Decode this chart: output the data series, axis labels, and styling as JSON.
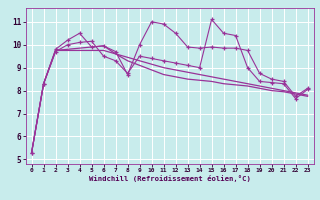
{
  "xlabel": "Windchill (Refroidissement éolien,°C)",
  "bg_color": "#c8ecec",
  "line_color": "#993399",
  "grid_color": "#ffffff",
  "xlim": [
    -0.5,
    23.5
  ],
  "ylim": [
    4.8,
    11.6
  ],
  "yticks": [
    5,
    6,
    7,
    8,
    9,
    10,
    11
  ],
  "xticks": [
    0,
    1,
    2,
    3,
    4,
    5,
    6,
    7,
    8,
    9,
    10,
    11,
    12,
    13,
    14,
    15,
    16,
    17,
    18,
    19,
    20,
    21,
    22,
    23
  ],
  "series": [
    [
      5.3,
      8.3,
      9.7,
      10.0,
      10.1,
      10.15,
      9.5,
      9.3,
      8.75,
      9.5,
      9.4,
      9.3,
      9.2,
      9.1,
      9.0,
      11.1,
      10.5,
      10.4,
      9.0,
      8.4,
      8.35,
      8.3,
      7.65,
      8.05
    ],
    [
      5.3,
      8.3,
      9.8,
      10.2,
      10.5,
      9.9,
      9.95,
      9.7,
      8.7,
      10.0,
      11.0,
      10.9,
      10.5,
      9.9,
      9.85,
      9.9,
      9.85,
      9.85,
      9.75,
      8.75,
      8.5,
      8.4,
      7.75,
      8.1
    ],
    [
      5.3,
      8.3,
      9.75,
      9.75,
      9.75,
      9.75,
      9.75,
      9.6,
      9.45,
      9.3,
      9.15,
      9.0,
      8.9,
      8.8,
      8.7,
      8.6,
      8.5,
      8.4,
      8.3,
      8.2,
      8.1,
      8.0,
      7.9,
      7.8
    ],
    [
      5.3,
      8.3,
      9.75,
      9.8,
      9.85,
      9.9,
      9.95,
      9.6,
      9.3,
      9.1,
      8.9,
      8.7,
      8.6,
      8.5,
      8.45,
      8.4,
      8.3,
      8.25,
      8.2,
      8.1,
      8.0,
      7.95,
      7.85,
      7.75
    ]
  ],
  "markers": [
    true,
    true,
    false,
    false
  ]
}
